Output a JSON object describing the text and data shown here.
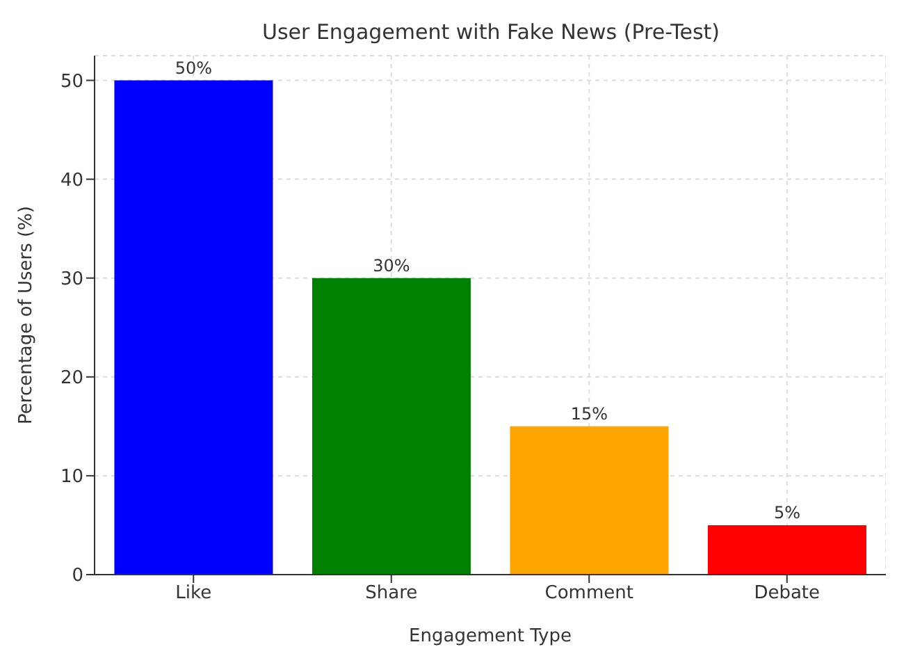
{
  "chart_data": {
    "type": "bar",
    "title": "User Engagement with Fake News (Pre-Test)",
    "xlabel": "Engagement Type",
    "ylabel": "Percentage of Users (%)",
    "categories": [
      "Like",
      "Share",
      "Comment",
      "Debate"
    ],
    "values": [
      50,
      30,
      15,
      5
    ],
    "colors": [
      "#0000ff",
      "#008000",
      "#ffa500",
      "#ff0000"
    ],
    "value_labels": [
      "50%",
      "30%",
      "15%",
      "5%"
    ],
    "ylim": [
      0,
      52.5
    ],
    "yticks": [
      0,
      10,
      20,
      30,
      40,
      50
    ],
    "grid": true
  }
}
